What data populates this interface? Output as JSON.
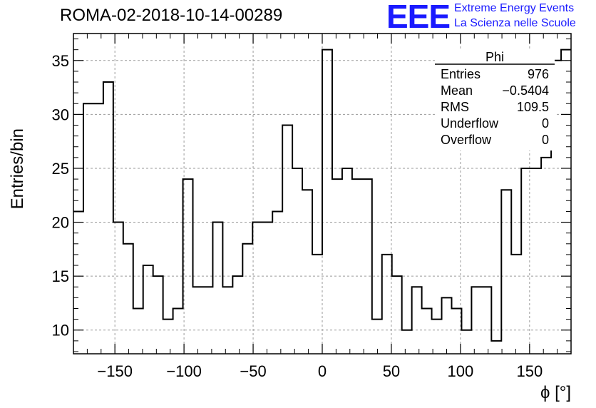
{
  "header": {
    "title": "ROMA-02-2018-10-14-00289",
    "logo_text": "EEE",
    "logo_line1": "Extreme Energy Events",
    "logo_line2": "La Scienza nelle Scuole",
    "logo_color": "#1a1aff"
  },
  "stats_box": {
    "title": "Phi",
    "rows": [
      {
        "label": "Entries",
        "value": "976"
      },
      {
        "label": "Mean",
        "value": "−0.5404"
      },
      {
        "label": "RMS",
        "value": "109.5"
      },
      {
        "label": "Underflow",
        "value": "0"
      },
      {
        "label": "Overflow",
        "value": "0"
      }
    ]
  },
  "chart_data": {
    "type": "bar",
    "histogram": true,
    "xlabel": "ϕ [°]",
    "ylabel": "Entries/bin",
    "xlim": [
      -180,
      180
    ],
    "ylim": [
      7.8,
      37.5
    ],
    "x_ticks": [
      -150,
      -100,
      -50,
      0,
      50,
      100,
      150
    ],
    "x_tick_labels": [
      "−150",
      "−100",
      "−50",
      "0",
      "50",
      "100",
      "150"
    ],
    "y_ticks": [
      10,
      15,
      20,
      25,
      30,
      35
    ],
    "y_tick_labels": [
      "10",
      "15",
      "20",
      "25",
      "30",
      "35"
    ],
    "grid": true,
    "bin_width": 7.2,
    "values": [
      21,
      31,
      31,
      33,
      20,
      18,
      12,
      16,
      15,
      11,
      12,
      24,
      14,
      14,
      20,
      14,
      15,
      18,
      20,
      20,
      21,
      29,
      25,
      23,
      17,
      36,
      24,
      25,
      24,
      24,
      11,
      17,
      15,
      10,
      14,
      12,
      11,
      13,
      12,
      10,
      14,
      14,
      9,
      23,
      17,
      25,
      25,
      26,
      35,
      36
    ],
    "line_color": "#000000"
  }
}
